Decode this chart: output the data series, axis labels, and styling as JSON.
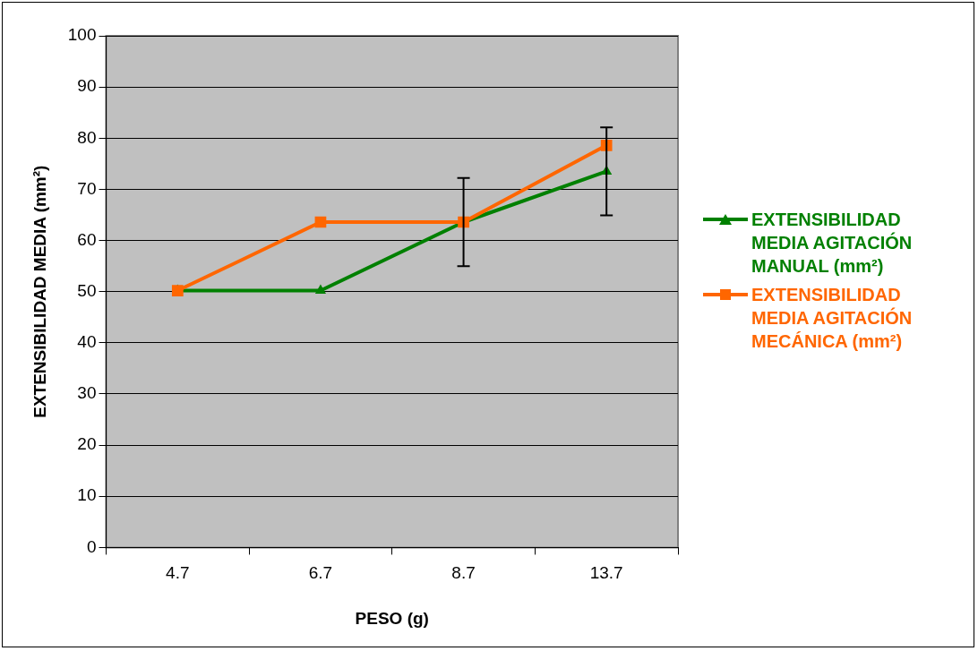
{
  "chart_data": {
    "type": "line",
    "xlabel": "PESO (g)",
    "ylabel": "EXTENSIBILIDAD MEDIA (mm²)",
    "categories": [
      "4.7",
      "6.7",
      "8.7",
      "13.7"
    ],
    "series": [
      {
        "name": "EXTENSIBILIDAD MEDIA AGITACIÓN MANUAL (mm²)",
        "color": "#008000",
        "marker": "triangle",
        "values": [
          50.2,
          50.2,
          63.6,
          73.5
        ],
        "errors": [
          null,
          null,
          8.6,
          8.6
        ]
      },
      {
        "name": "EXTENSIBILIDAD MEDIA AGITACIÓN MECÁNICA (mm²)",
        "color": "#ff6600",
        "marker": "square",
        "values": [
          50.2,
          63.6,
          63.6,
          78.6
        ]
      }
    ],
    "ylim": [
      0,
      100
    ],
    "yticks": [
      0,
      10,
      20,
      30,
      40,
      50,
      60,
      70,
      80,
      90,
      100
    ],
    "grid": "y",
    "legend": "right",
    "line_style": "solid"
  }
}
